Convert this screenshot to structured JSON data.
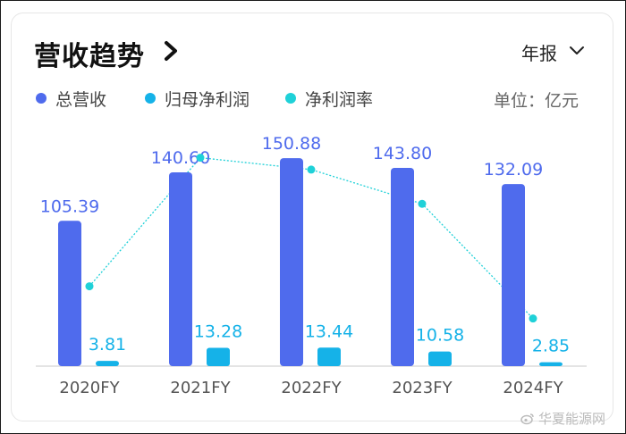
{
  "header": {
    "title": "营收趋势",
    "period": "年报",
    "unit": "单位：亿元"
  },
  "legend": [
    {
      "label": "总营收",
      "color": "#4f6bed"
    },
    {
      "label": "归母净利润",
      "color": "#15b2e8"
    },
    {
      "label": "净利润率",
      "color": "#1fd1d8"
    }
  ],
  "watermark": "华夏能源网",
  "chart_data": {
    "type": "bar",
    "categories": [
      "2020FY",
      "2021FY",
      "2022FY",
      "2023FY",
      "2024FY"
    ],
    "series": [
      {
        "name": "总营收",
        "type": "bar",
        "color": "#4f6bed",
        "values": [
          105.39,
          140.6,
          150.88,
          143.8,
          132.09
        ]
      },
      {
        "name": "归母净利润",
        "type": "bar",
        "color": "#15b2e8",
        "values": [
          3.81,
          13.28,
          13.44,
          10.58,
          2.85
        ]
      },
      {
        "name": "净利润率",
        "type": "line",
        "color": "#1fd1d8",
        "values": [
          3.62,
          9.45,
          8.91,
          7.36,
          2.16
        ]
      }
    ],
    "data_labels": {
      "总营收": [
        "105.39",
        "140.60",
        "150.88",
        "143.80",
        "132.09"
      ],
      "归母净利润": [
        "3.81",
        "13.28",
        "13.44",
        "10.58",
        "2.85"
      ]
    },
    "ylim": [
      0,
      160
    ],
    "ylim_secondary": [
      0,
      10
    ],
    "grid": false,
    "legend_position": "top-left"
  }
}
